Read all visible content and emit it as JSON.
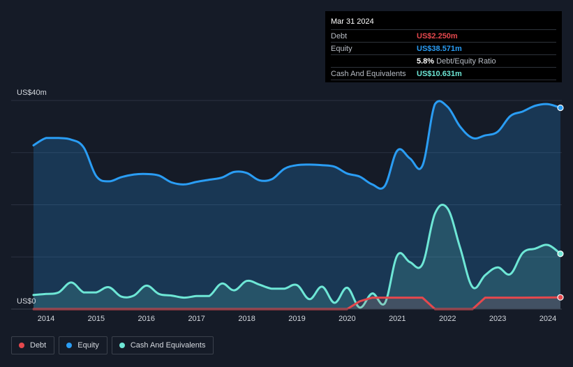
{
  "tooltip": {
    "date": "Mar 31 2024",
    "rows": [
      {
        "label": "Debt",
        "value": "US$2.250m",
        "color": "#e5484d"
      },
      {
        "label": "Equity",
        "value": "US$38.571m",
        "color": "#2a9df4"
      }
    ],
    "ratio_value": "5.8%",
    "ratio_label": "Debt/Equity Ratio",
    "cash": {
      "label": "Cash And Equivalents",
      "value": "US$10.631m",
      "color": "#6ee7d6"
    }
  },
  "legend": [
    {
      "label": "Debt",
      "color": "#e5484d"
    },
    {
      "label": "Equity",
      "color": "#2a9df4"
    },
    {
      "label": "Cash And Equivalents",
      "color": "#6ee7d6"
    }
  ],
  "chart_data": {
    "type": "area",
    "x_ticks": [
      "2014",
      "2015",
      "2016",
      "2017",
      "2018",
      "2019",
      "2020",
      "2021",
      "2022",
      "2023",
      "2024"
    ],
    "y_tick_labels": [
      {
        "value": 40,
        "label": "US$40m"
      },
      {
        "value": 0,
        "label": "US$0"
      }
    ],
    "ylim": [
      0,
      40
    ],
    "xlim": [
      2013.75,
      2024.25
    ],
    "grid": true,
    "legend_position": "bottom-left",
    "series": [
      {
        "name": "Equity",
        "color": "#2a9df4",
        "points": [
          [
            2013.75,
            31.4
          ],
          [
            2014.0,
            32.8
          ],
          [
            2014.25,
            32.8
          ],
          [
            2014.5,
            32.5
          ],
          [
            2014.75,
            31.0
          ],
          [
            2015.0,
            25.5
          ],
          [
            2015.25,
            24.5
          ],
          [
            2015.5,
            25.3
          ],
          [
            2015.75,
            25.8
          ],
          [
            2016.0,
            25.9
          ],
          [
            2016.25,
            25.6
          ],
          [
            2016.5,
            24.3
          ],
          [
            2016.75,
            23.9
          ],
          [
            2017.0,
            24.4
          ],
          [
            2017.25,
            24.8
          ],
          [
            2017.5,
            25.2
          ],
          [
            2017.75,
            26.3
          ],
          [
            2018.0,
            26.1
          ],
          [
            2018.25,
            24.7
          ],
          [
            2018.5,
            24.9
          ],
          [
            2018.75,
            26.9
          ],
          [
            2019.0,
            27.6
          ],
          [
            2019.25,
            27.7
          ],
          [
            2019.5,
            27.6
          ],
          [
            2019.75,
            27.3
          ],
          [
            2020.0,
            26.0
          ],
          [
            2020.25,
            25.4
          ],
          [
            2020.5,
            23.9
          ],
          [
            2020.75,
            23.6
          ],
          [
            2021.0,
            30.4
          ],
          [
            2021.25,
            28.9
          ],
          [
            2021.5,
            27.5
          ],
          [
            2021.75,
            39.3
          ],
          [
            2022.0,
            38.8
          ],
          [
            2022.25,
            35.0
          ],
          [
            2022.5,
            32.8
          ],
          [
            2022.75,
            33.3
          ],
          [
            2023.0,
            34.0
          ],
          [
            2023.25,
            37.0
          ],
          [
            2023.5,
            37.9
          ],
          [
            2023.75,
            39.0
          ],
          [
            2024.0,
            39.3
          ],
          [
            2024.25,
            38.6
          ]
        ]
      },
      {
        "name": "Cash And Equivalents",
        "color": "#6ee7d6",
        "points": [
          [
            2013.75,
            2.7
          ],
          [
            2014.0,
            2.9
          ],
          [
            2014.25,
            3.2
          ],
          [
            2014.5,
            5.1
          ],
          [
            2014.75,
            3.2
          ],
          [
            2015.0,
            3.2
          ],
          [
            2015.25,
            4.2
          ],
          [
            2015.5,
            2.4
          ],
          [
            2015.75,
            2.6
          ],
          [
            2016.0,
            4.5
          ],
          [
            2016.25,
            2.9
          ],
          [
            2016.5,
            2.6
          ],
          [
            2016.75,
            2.2
          ],
          [
            2017.0,
            2.5
          ],
          [
            2017.25,
            2.5
          ],
          [
            2017.5,
            4.9
          ],
          [
            2017.75,
            3.6
          ],
          [
            2018.0,
            5.4
          ],
          [
            2018.25,
            4.7
          ],
          [
            2018.5,
            3.9
          ],
          [
            2018.75,
            3.9
          ],
          [
            2019.0,
            4.6
          ],
          [
            2019.25,
            1.9
          ],
          [
            2019.5,
            4.3
          ],
          [
            2019.75,
            1.2
          ],
          [
            2020.0,
            4.1
          ],
          [
            2020.25,
            0.3
          ],
          [
            2020.5,
            3.0
          ],
          [
            2020.75,
            1.1
          ],
          [
            2021.0,
            10.3
          ],
          [
            2021.25,
            9.0
          ],
          [
            2021.5,
            8.6
          ],
          [
            2021.75,
            18.3
          ],
          [
            2022.0,
            19.3
          ],
          [
            2022.25,
            11.8
          ],
          [
            2022.5,
            4.2
          ],
          [
            2022.75,
            6.5
          ],
          [
            2023.0,
            8.0
          ],
          [
            2023.25,
            6.7
          ],
          [
            2023.5,
            10.8
          ],
          [
            2023.75,
            11.6
          ],
          [
            2024.0,
            12.3
          ],
          [
            2024.25,
            10.6
          ]
        ]
      },
      {
        "name": "Debt",
        "color": "#e5484d",
        "points": [
          [
            2013.75,
            0.0
          ],
          [
            2020.0,
            0.0
          ],
          [
            2020.25,
            1.5
          ],
          [
            2020.5,
            2.2
          ],
          [
            2021.0,
            2.2
          ],
          [
            2021.5,
            2.2
          ],
          [
            2021.75,
            0.0
          ],
          [
            2022.5,
            0.0
          ],
          [
            2022.75,
            2.2
          ],
          [
            2023.0,
            2.2
          ],
          [
            2023.5,
            2.2
          ],
          [
            2024.25,
            2.25
          ]
        ]
      }
    ]
  }
}
